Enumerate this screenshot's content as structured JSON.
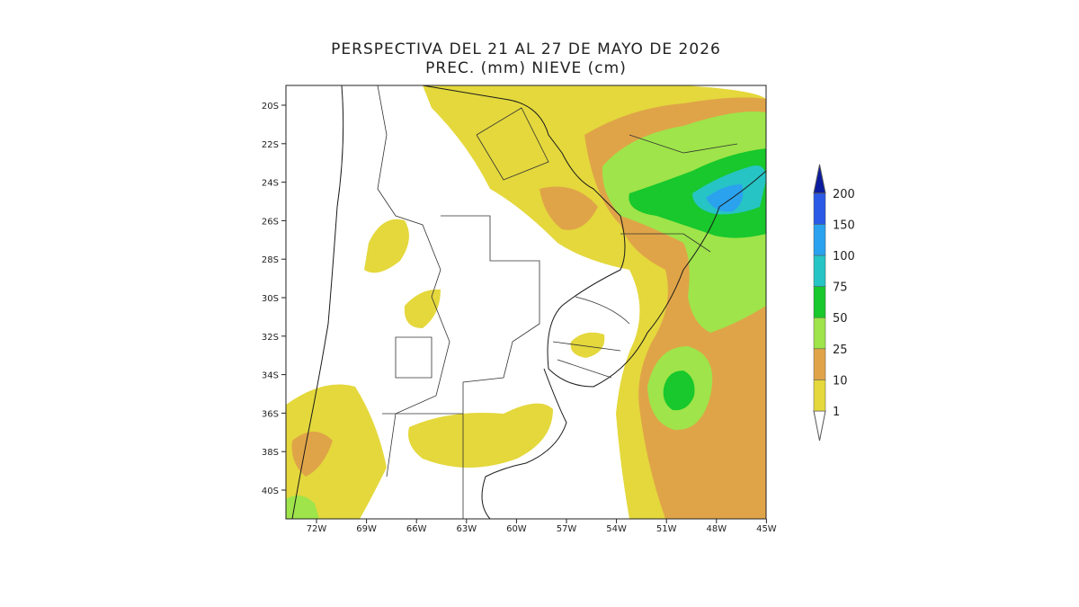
{
  "title": "PERSPECTIVA DEL 21 AL 27 DE MAYO DE 2026",
  "subtitle": "PREC. (mm) NIEVE (cm)",
  "lat_labels": [
    "20S",
    "22S",
    "24S",
    "26S",
    "28S",
    "30S",
    "32S",
    "34S",
    "36S",
    "38S",
    "40S"
  ],
  "lon_labels": [
    "72W",
    "69W",
    "66W",
    "63W",
    "60W",
    "57W",
    "54W",
    "51W",
    "48W",
    "45W"
  ],
  "colorbar": {
    "levels": [
      1,
      10,
      25,
      50,
      75,
      100,
      150,
      200
    ],
    "colors": [
      "#ffffff",
      "#e4d83c",
      "#e0a448",
      "#9ee44a",
      "#18c82c",
      "#26c4c4",
      "#2aa2ee",
      "#2a5ae6",
      "#0c1c9e"
    ]
  }
}
